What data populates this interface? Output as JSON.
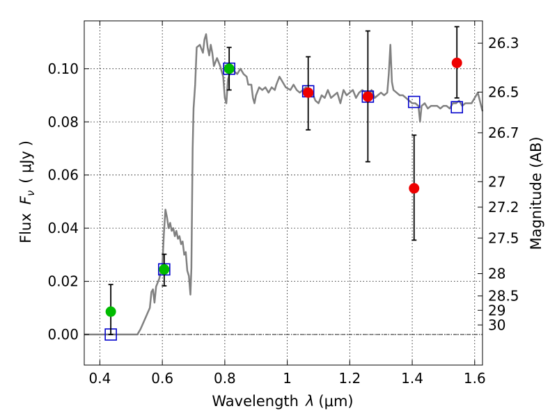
{
  "chart_data": {
    "type": "scatter",
    "xlabel_text": "Wavelength",
    "xlabel_symbol": "λ",
    "xlabel_unit": "(μm)",
    "ylabel_text": "Flux",
    "ylabel_symbol": "F",
    "ylabel_sub": "ν",
    "ylabel_unit": "( μJy )",
    "y2label": "Magnitude (AB)",
    "xlim": [
      0.35,
      1.625
    ],
    "ylim": [
      -0.0115,
      0.118
    ],
    "grid": true,
    "x_ticks": [
      {
        "v": 0.4,
        "label": "0.4"
      },
      {
        "v": 0.6,
        "label": "0.6"
      },
      {
        "v": 0.8,
        "label": "0.8"
      },
      {
        "v": 1.0,
        "label": "1"
      },
      {
        "v": 1.2,
        "label": "1.2"
      },
      {
        "v": 1.4,
        "label": "1.4"
      },
      {
        "v": 1.6,
        "label": "1.6"
      }
    ],
    "y_ticks": [
      {
        "v": 0.0,
        "label": "0.00"
      },
      {
        "v": 0.02,
        "label": "0.02"
      },
      {
        "v": 0.04,
        "label": "0.04"
      },
      {
        "v": 0.06,
        "label": "0.06"
      },
      {
        "v": 0.08,
        "label": "0.08"
      },
      {
        "v": 0.1,
        "label": "0.10"
      }
    ],
    "y2_ticks": [
      {
        "flux": 0.1096,
        "label": "26.3"
      },
      {
        "flux": 0.0912,
        "label": "26.5"
      },
      {
        "flux": 0.0759,
        "label": "26.7"
      },
      {
        "flux": 0.0575,
        "label": "27"
      },
      {
        "flux": 0.0479,
        "label": "27.2"
      },
      {
        "flux": 0.0363,
        "label": "27.5"
      },
      {
        "flux": 0.0229,
        "label": "28"
      },
      {
        "flux": 0.0145,
        "label": "28.5"
      },
      {
        "flux": 0.0091,
        "label": "29"
      },
      {
        "flux": 0.0036,
        "label": "30"
      }
    ],
    "zero_line": 0,
    "series": [
      {
        "kind": "model_spectrum",
        "color": "#808080",
        "points": [
          [
            0.35,
            0.0
          ],
          [
            0.52,
            0.0
          ],
          [
            0.53,
            0.002
          ],
          [
            0.545,
            0.006
          ],
          [
            0.56,
            0.01
          ],
          [
            0.565,
            0.016
          ],
          [
            0.57,
            0.017
          ],
          [
            0.575,
            0.012
          ],
          [
            0.58,
            0.018
          ],
          [
            0.59,
            0.021
          ],
          [
            0.6,
            0.026
          ],
          [
            0.605,
            0.038
          ],
          [
            0.61,
            0.047
          ],
          [
            0.615,
            0.044
          ],
          [
            0.62,
            0.04
          ],
          [
            0.625,
            0.042
          ],
          [
            0.63,
            0.039
          ],
          [
            0.635,
            0.04
          ],
          [
            0.64,
            0.037
          ],
          [
            0.645,
            0.039
          ],
          [
            0.65,
            0.036
          ],
          [
            0.655,
            0.037
          ],
          [
            0.66,
            0.034
          ],
          [
            0.665,
            0.035
          ],
          [
            0.67,
            0.03
          ],
          [
            0.675,
            0.031
          ],
          [
            0.68,
            0.024
          ],
          [
            0.685,
            0.022
          ],
          [
            0.69,
            0.015
          ],
          [
            0.693,
            0.025
          ],
          [
            0.697,
            0.07
          ],
          [
            0.7,
            0.085
          ],
          [
            0.705,
            0.094
          ],
          [
            0.71,
            0.108
          ],
          [
            0.72,
            0.109
          ],
          [
            0.73,
            0.106
          ],
          [
            0.735,
            0.111
          ],
          [
            0.74,
            0.113
          ],
          [
            0.745,
            0.108
          ],
          [
            0.75,
            0.105
          ],
          [
            0.755,
            0.109
          ],
          [
            0.76,
            0.106
          ],
          [
            0.765,
            0.101
          ],
          [
            0.775,
            0.104
          ],
          [
            0.785,
            0.101
          ],
          [
            0.795,
            0.097
          ],
          [
            0.8,
            0.089
          ],
          [
            0.805,
            0.087
          ],
          [
            0.81,
            0.096
          ],
          [
            0.82,
            0.1
          ],
          [
            0.83,
            0.099
          ],
          [
            0.84,
            0.098
          ],
          [
            0.85,
            0.1
          ],
          [
            0.86,
            0.098
          ],
          [
            0.87,
            0.097
          ],
          [
            0.875,
            0.094
          ],
          [
            0.885,
            0.094
          ],
          [
            0.89,
            0.089
          ],
          [
            0.895,
            0.087
          ],
          [
            0.9,
            0.09
          ],
          [
            0.91,
            0.093
          ],
          [
            0.92,
            0.092
          ],
          [
            0.93,
            0.093
          ],
          [
            0.94,
            0.091
          ],
          [
            0.95,
            0.093
          ],
          [
            0.96,
            0.092
          ],
          [
            0.965,
            0.094
          ],
          [
            0.975,
            0.097
          ],
          [
            0.985,
            0.095
          ],
          [
            0.995,
            0.093
          ],
          [
            1.01,
            0.092
          ],
          [
            1.02,
            0.094
          ],
          [
            1.03,
            0.092
          ],
          [
            1.04,
            0.091
          ],
          [
            1.05,
            0.092
          ],
          [
            1.06,
            0.093
          ],
          [
            1.07,
            0.091
          ],
          [
            1.08,
            0.091
          ],
          [
            1.09,
            0.088
          ],
          [
            1.1,
            0.087
          ],
          [
            1.11,
            0.09
          ],
          [
            1.12,
            0.089
          ],
          [
            1.13,
            0.092
          ],
          [
            1.14,
            0.089
          ],
          [
            1.15,
            0.09
          ],
          [
            1.16,
            0.091
          ],
          [
            1.17,
            0.087
          ],
          [
            1.18,
            0.092
          ],
          [
            1.19,
            0.09
          ],
          [
            1.2,
            0.091
          ],
          [
            1.21,
            0.092
          ],
          [
            1.22,
            0.089
          ],
          [
            1.23,
            0.091
          ],
          [
            1.24,
            0.092
          ],
          [
            1.25,
            0.091
          ],
          [
            1.26,
            0.09
          ],
          [
            1.27,
            0.092
          ],
          [
            1.28,
            0.089
          ],
          [
            1.29,
            0.09
          ],
          [
            1.3,
            0.091
          ],
          [
            1.31,
            0.09
          ],
          [
            1.32,
            0.091
          ],
          [
            1.325,
            0.098
          ],
          [
            1.33,
            0.109
          ],
          [
            1.335,
            0.095
          ],
          [
            1.34,
            0.092
          ],
          [
            1.35,
            0.091
          ],
          [
            1.36,
            0.09
          ],
          [
            1.37,
            0.09
          ],
          [
            1.38,
            0.089
          ],
          [
            1.39,
            0.088
          ],
          [
            1.4,
            0.087
          ],
          [
            1.41,
            0.087
          ],
          [
            1.42,
            0.086
          ],
          [
            1.425,
            0.08
          ],
          [
            1.43,
            0.086
          ],
          [
            1.44,
            0.087
          ],
          [
            1.45,
            0.085
          ],
          [
            1.46,
            0.086
          ],
          [
            1.47,
            0.086
          ],
          [
            1.48,
            0.086
          ],
          [
            1.49,
            0.085
          ],
          [
            1.5,
            0.086
          ],
          [
            1.51,
            0.086
          ],
          [
            1.52,
            0.085
          ],
          [
            1.53,
            0.087
          ],
          [
            1.54,
            0.087
          ],
          [
            1.55,
            0.088
          ],
          [
            1.56,
            0.086
          ],
          [
            1.57,
            0.087
          ],
          [
            1.58,
            0.087
          ],
          [
            1.59,
            0.087
          ],
          [
            1.6,
            0.089
          ],
          [
            1.61,
            0.091
          ],
          [
            1.625,
            0.084
          ]
        ]
      },
      {
        "kind": "model_photometry",
        "marker": "square",
        "color": "#0000cc",
        "points": [
          [
            0.435,
            0.0
          ],
          [
            0.606,
            0.0245
          ],
          [
            0.814,
            0.1
          ],
          [
            1.067,
            0.0915
          ],
          [
            1.258,
            0.0895
          ],
          [
            1.406,
            0.0875
          ],
          [
            1.543,
            0.0855
          ]
        ]
      },
      {
        "kind": "observed_green",
        "marker": "circle",
        "color": "#00bb00",
        "points": [
          {
            "x": 0.435,
            "y": 0.0086,
            "err_lo": -0.0,
            "err_hi": 0.0188
          },
          {
            "x": 0.606,
            "y": 0.0245,
            "err_lo": 0.0183,
            "err_hi": 0.0302
          },
          {
            "x": 0.814,
            "y": 0.1,
            "err_lo": 0.092,
            "err_hi": 0.108
          }
        ]
      },
      {
        "kind": "observed_red",
        "marker": "circle",
        "color": "#ee0000",
        "points": [
          {
            "x": 1.067,
            "y": 0.091,
            "err_lo": 0.077,
            "err_hi": 0.1045
          },
          {
            "x": 1.258,
            "y": 0.0895,
            "err_lo": 0.065,
            "err_hi": 0.1142
          },
          {
            "x": 1.406,
            "y": 0.055,
            "err_lo": 0.0355,
            "err_hi": 0.075
          },
          {
            "x": 1.543,
            "y": 0.1022,
            "err_lo": 0.089,
            "err_hi": 0.1158
          }
        ]
      }
    ]
  }
}
